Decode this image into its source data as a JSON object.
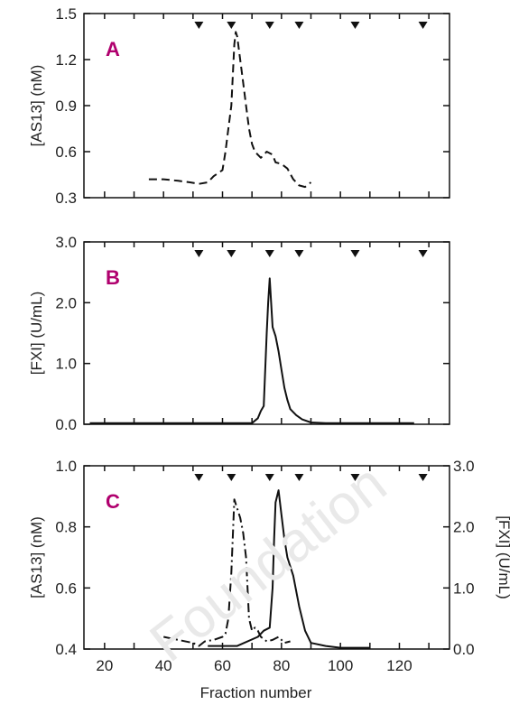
{
  "watermark": "Foundation",
  "chart_data": [
    {
      "type": "line",
      "panel_label": "A",
      "ylabel": "[AS13] (nM)",
      "xlim": [
        13,
        137
      ],
      "ylim": [
        0.3,
        1.5
      ],
      "yticks": [
        "0.3",
        "0.6",
        "0.9",
        "1.2",
        "1.5"
      ],
      "ytick_values": [
        0.3,
        0.6,
        0.9,
        1.2,
        1.5
      ],
      "marker_x": [
        52,
        63,
        76,
        86,
        105,
        128
      ],
      "series": [
        {
          "style": "dashed",
          "x": [
            35,
            40,
            45,
            49,
            52,
            55,
            57,
            60,
            61,
            62,
            63,
            64,
            64.5,
            65,
            66,
            67,
            68,
            69,
            70,
            71,
            72,
            73,
            75,
            77,
            78,
            80,
            82,
            84,
            86,
            88,
            90
          ],
          "y": [
            0.42,
            0.42,
            0.41,
            0.4,
            0.39,
            0.4,
            0.44,
            0.48,
            0.6,
            0.75,
            0.9,
            1.3,
            1.38,
            1.35,
            1.2,
            1.05,
            0.9,
            0.75,
            0.65,
            0.6,
            0.58,
            0.56,
            0.6,
            0.58,
            0.53,
            0.52,
            0.49,
            0.42,
            0.38,
            0.37,
            0.4
          ]
        }
      ]
    },
    {
      "type": "line",
      "panel_label": "B",
      "ylabel": "[FXI] (U/mL)",
      "xlim": [
        13,
        137
      ],
      "ylim": [
        0.0,
        3.0
      ],
      "yticks": [
        "0.0",
        "1.0",
        "2.0",
        "3.0"
      ],
      "ytick_values": [
        0,
        1,
        2,
        3
      ],
      "marker_x": [
        52,
        63,
        76,
        86,
        105,
        128
      ],
      "series": [
        {
          "style": "solid",
          "x": [
            15,
            35,
            55,
            70,
            72,
            73,
            74,
            75,
            75.5,
            76,
            76.5,
            77,
            78,
            79,
            80,
            81,
            82,
            83,
            85,
            87,
            90,
            95,
            100,
            110,
            125
          ],
          "y": [
            0.02,
            0.02,
            0.02,
            0.02,
            0.1,
            0.22,
            0.3,
            1.5,
            2.0,
            2.4,
            2.0,
            1.6,
            1.45,
            1.2,
            0.9,
            0.6,
            0.4,
            0.25,
            0.15,
            0.08,
            0.03,
            0.02,
            0.02,
            0.02,
            0.02
          ]
        }
      ]
    },
    {
      "type": "line",
      "panel_label": "C",
      "xlabel": "Fraction number",
      "ylabel": "[AS13] (nM)",
      "ylabel_right": "[FXI] (U/mL)",
      "xlim": [
        13,
        137
      ],
      "ylim": [
        0.4,
        1.0
      ],
      "ylim_right": [
        0.0,
        3.0
      ],
      "xticks": [
        "20",
        "40",
        "60",
        "80",
        "100",
        "120"
      ],
      "xtick_values": [
        20,
        40,
        60,
        80,
        100,
        120
      ],
      "yticks": [
        "0.4",
        "0.6",
        "0.8",
        "1.0"
      ],
      "ytick_values": [
        0.4,
        0.6,
        0.8,
        1.0
      ],
      "yticks_right": [
        "0.0",
        "1.0",
        "2.0",
        "3.0"
      ],
      "ytick_values_right": [
        0,
        1,
        2,
        3
      ],
      "marker_x": [
        52,
        63,
        76,
        86,
        105,
        128
      ],
      "series": [
        {
          "style": "dashdot",
          "axis": "left",
          "x": [
            40,
            45,
            50,
            52,
            54,
            57,
            60,
            61,
            62,
            63,
            64,
            65,
            66,
            67,
            68,
            69,
            70,
            71,
            72,
            73,
            75,
            77,
            79,
            81,
            83
          ],
          "y": [
            0.44,
            0.43,
            0.42,
            0.41,
            0.425,
            0.43,
            0.44,
            0.45,
            0.5,
            0.65,
            0.89,
            0.86,
            0.83,
            0.78,
            0.7,
            0.5,
            0.46,
            0.47,
            0.46,
            0.44,
            0.425,
            0.43,
            0.44,
            0.42,
            0.425
          ]
        },
        {
          "style": "solid",
          "axis": "right",
          "x": [
            55,
            65,
            72,
            74,
            76,
            77,
            77.5,
            78,
            79,
            80,
            81,
            82,
            84,
            86,
            88,
            90,
            95,
            100,
            110
          ],
          "y": [
            0.05,
            0.05,
            0.2,
            0.3,
            0.35,
            1.0,
            1.8,
            2.4,
            2.6,
            2.2,
            1.8,
            1.5,
            1.2,
            0.7,
            0.3,
            0.1,
            0.05,
            0.02,
            0.02
          ]
        }
      ]
    }
  ]
}
